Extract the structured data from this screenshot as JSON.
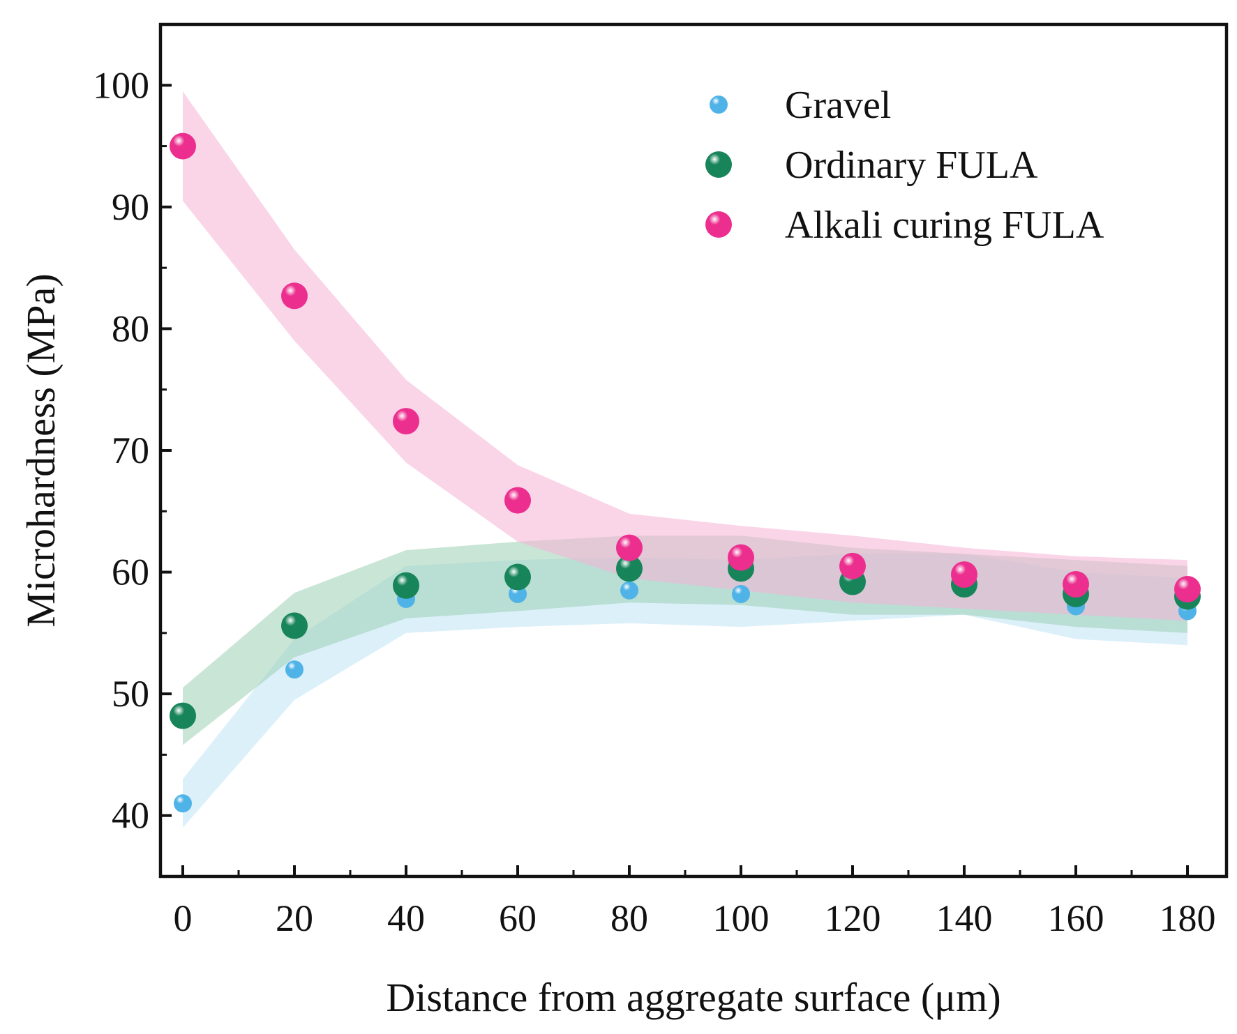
{
  "chart_data": {
    "type": "scatter",
    "title": "",
    "xlabel": "Distance from aggregate surface (μm)",
    "ylabel": "Microhardness (MPa)",
    "xlim": [
      -4,
      187
    ],
    "ylim": [
      35,
      105
    ],
    "x_ticks": [
      0,
      20,
      40,
      60,
      80,
      100,
      120,
      140,
      160,
      180
    ],
    "x_tick_labels": [
      "0",
      "20",
      "40",
      "60",
      "80",
      "100",
      "120",
      "140",
      "160",
      "180"
    ],
    "y_ticks": [
      40,
      50,
      60,
      70,
      80,
      90,
      100
    ],
    "y_tick_labels": [
      "40",
      "50",
      "60",
      "70",
      "80",
      "90",
      "100"
    ],
    "legend_position": "top-right",
    "x": [
      0,
      20,
      40,
      60,
      80,
      100,
      120,
      140,
      160,
      180
    ],
    "series": [
      {
        "name": "Gravel",
        "color": "#4fb3e8",
        "band_color": "#bfe3f6",
        "marker_size": "small",
        "values": [
          41.0,
          52.0,
          57.8,
          58.2,
          58.5,
          58.2,
          59.0,
          59.0,
          57.2,
          56.8
        ],
        "band_lower": [
          39.0,
          49.5,
          55.0,
          55.5,
          55.8,
          55.5,
          56.0,
          56.5,
          54.5,
          54.0
        ],
        "band_upper": [
          43.0,
          54.5,
          60.5,
          61.0,
          61.2,
          61.0,
          61.5,
          61.5,
          60.0,
          59.5
        ]
      },
      {
        "name": "Ordinary FULA",
        "color": "#17845a",
        "band_color": "#9ccfb4",
        "marker_size": "large",
        "values": [
          48.2,
          55.6,
          58.9,
          59.6,
          60.3,
          60.3,
          59.2,
          59.0,
          58.2,
          58.0
        ],
        "band_lower": [
          45.8,
          53.0,
          56.2,
          56.8,
          57.5,
          57.3,
          56.5,
          56.5,
          55.5,
          55.0
        ],
        "band_upper": [
          50.5,
          58.3,
          61.8,
          62.5,
          63.0,
          63.0,
          62.0,
          61.5,
          61.0,
          60.5
        ]
      },
      {
        "name": "Alkali curing FULA",
        "color": "#ec2f8e",
        "band_color": "#f6b3d5",
        "marker_size": "large",
        "values": [
          95.0,
          82.7,
          72.4,
          65.9,
          62.0,
          61.2,
          60.5,
          59.8,
          59.0,
          58.6
        ],
        "band_lower": [
          90.5,
          79.0,
          69.0,
          62.5,
          59.5,
          58.5,
          57.5,
          57.0,
          56.5,
          56.0
        ],
        "band_upper": [
          99.5,
          86.5,
          75.8,
          68.8,
          64.8,
          63.8,
          63.0,
          62.0,
          61.3,
          61.0
        ]
      }
    ]
  }
}
